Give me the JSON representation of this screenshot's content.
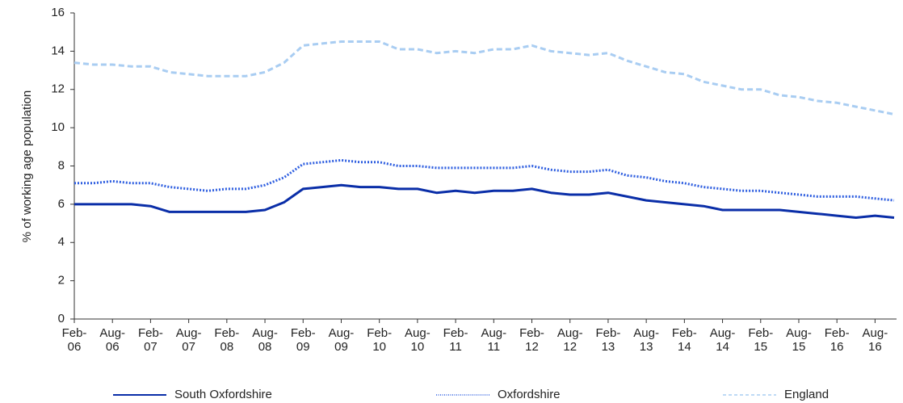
{
  "chart_data": {
    "type": "line",
    "y_label": "% of working age population",
    "categories": [
      "Feb-\n06",
      null,
      "Aug-\n06",
      null,
      "Feb-\n07",
      null,
      "Aug-\n07",
      null,
      "Feb-\n08",
      null,
      "Aug-\n08",
      null,
      "Feb-\n09",
      null,
      "Aug-\n09",
      null,
      "Feb-\n10",
      null,
      "Aug-\n10",
      null,
      "Feb-\n11",
      null,
      "Aug-\n11",
      null,
      "Feb-\n12",
      null,
      "Aug-\n12",
      null,
      "Feb-\n13",
      null,
      "Aug-\n13",
      null,
      "Feb-\n14",
      null,
      "Aug-\n14",
      null,
      "Feb-\n15",
      null,
      "Aug-\n15",
      null,
      "Feb-\n16",
      null,
      "Aug-\n16",
      null
    ],
    "series": [
      {
        "name": "South Oxfordshire",
        "color": "#0a2ea8",
        "style": "solid",
        "values": [
          6.0,
          6.0,
          6.0,
          6.0,
          5.9,
          5.6,
          5.6,
          5.6,
          5.6,
          5.6,
          5.7,
          6.1,
          6.8,
          6.9,
          7.0,
          6.9,
          6.9,
          6.8,
          6.8,
          6.6,
          6.7,
          6.6,
          6.7,
          6.7,
          6.8,
          6.6,
          6.5,
          6.5,
          6.6,
          6.4,
          6.2,
          6.1,
          6.0,
          5.9,
          5.7,
          5.7,
          5.7,
          5.7,
          5.6,
          5.5,
          5.4,
          5.3,
          5.4,
          5.3
        ]
      },
      {
        "name": "Oxfordshire",
        "color": "#2f5fe0",
        "style": "dotted",
        "values": [
          7.1,
          7.1,
          7.2,
          7.1,
          7.1,
          6.9,
          6.8,
          6.7,
          6.8,
          6.8,
          7.0,
          7.4,
          8.1,
          8.2,
          8.3,
          8.2,
          8.2,
          8.0,
          8.0,
          7.9,
          7.9,
          7.9,
          7.9,
          7.9,
          8.0,
          7.8,
          7.7,
          7.7,
          7.8,
          7.5,
          7.4,
          7.2,
          7.1,
          6.9,
          6.8,
          6.7,
          6.7,
          6.6,
          6.5,
          6.4,
          6.4,
          6.4,
          6.3,
          6.2
        ]
      },
      {
        "name": "England",
        "color": "#a9cdf2",
        "style": "dashed",
        "values": [
          13.4,
          13.3,
          13.3,
          13.2,
          13.2,
          12.9,
          12.8,
          12.7,
          12.7,
          12.7,
          12.9,
          13.4,
          14.3,
          14.4,
          14.5,
          14.5,
          14.5,
          14.1,
          14.1,
          13.9,
          14.0,
          13.9,
          14.1,
          14.1,
          14.3,
          14.0,
          13.9,
          13.8,
          13.9,
          13.5,
          13.2,
          12.9,
          12.8,
          12.4,
          12.2,
          12.0,
          12.0,
          11.7,
          11.6,
          11.4,
          11.3,
          11.1,
          10.9,
          10.7
        ]
      }
    ],
    "ylim": [
      0,
      16
    ],
    "yticks": [
      0,
      2,
      4,
      6,
      8,
      10,
      12,
      14,
      16
    ],
    "grid": false,
    "legend": "bottom"
  }
}
